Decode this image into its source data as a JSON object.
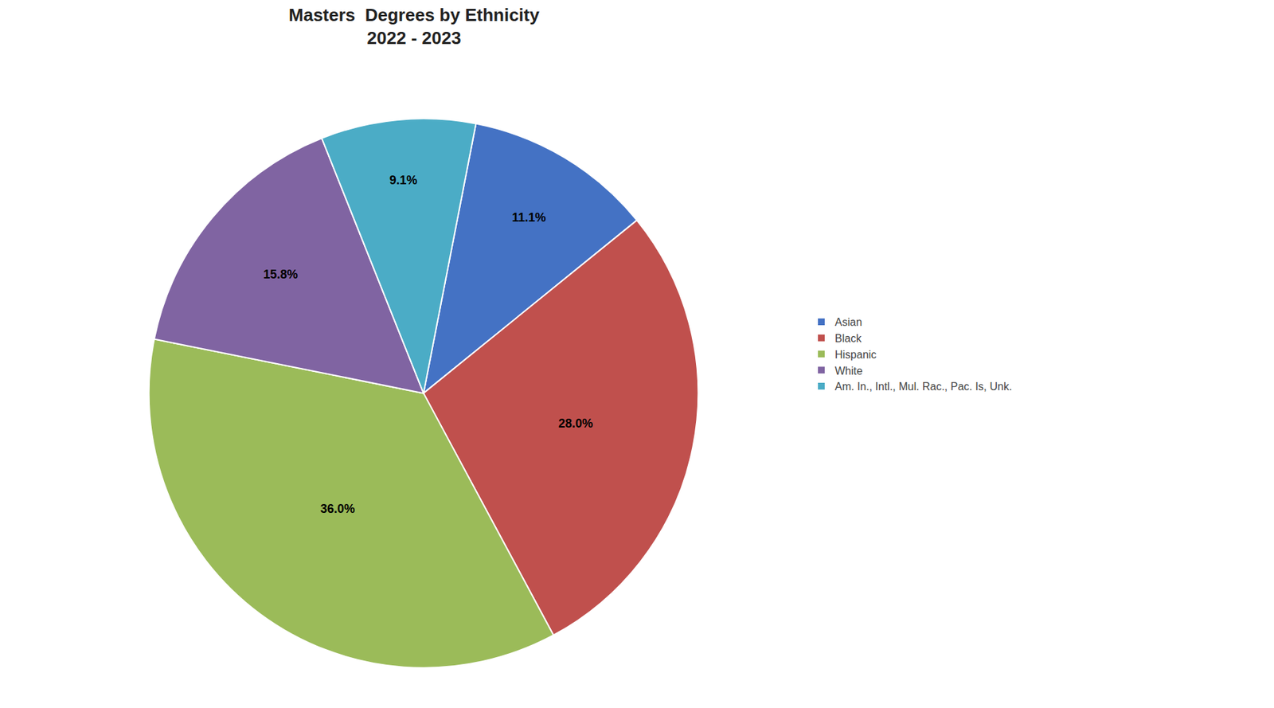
{
  "chart_data": {
    "type": "pie",
    "title": "Masters  Degrees by Ethnicity\n2022 - 2023",
    "categories": [
      "Asian",
      "Black",
      "Hispanic",
      "White",
      "Am. In., Intl., Mul. Rac., Pac. Is, Unk."
    ],
    "values": [
      11.1,
      28.0,
      36.0,
      15.8,
      9.1
    ],
    "value_labels": [
      "11.1%",
      "28.0%",
      "36.0%",
      "15.8%",
      "9.1%"
    ],
    "colors": [
      "#4472C4",
      "#C0504D",
      "#9BBB59",
      "#8064A2",
      "#4BACC6"
    ],
    "data_labels": true,
    "legend": "right"
  }
}
